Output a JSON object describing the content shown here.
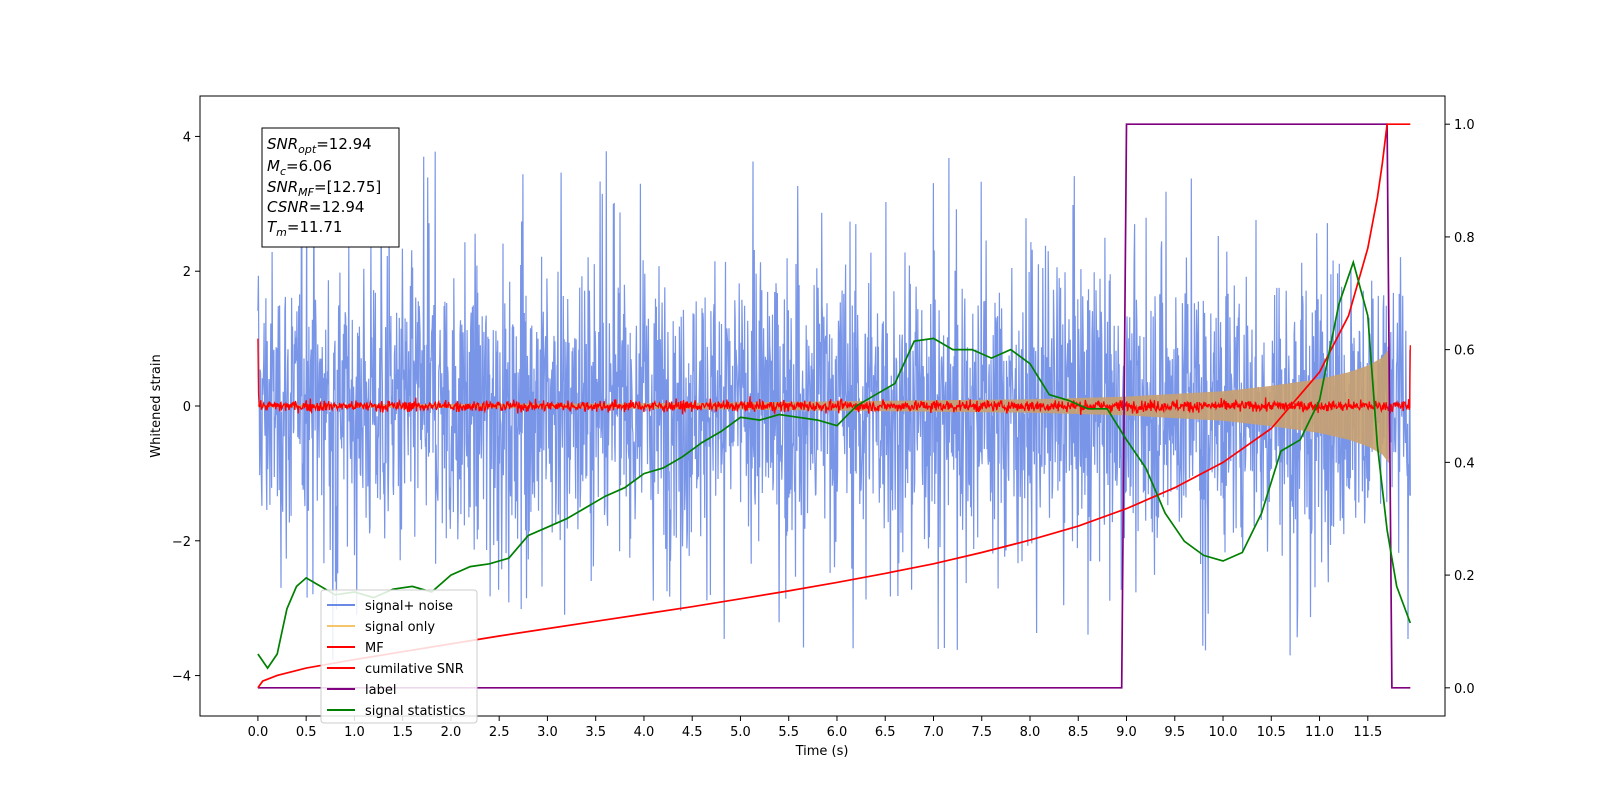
{
  "chart_data": {
    "type": "line",
    "xlabel": "Time (s)",
    "ylabel": "Whitened strain",
    "xlim": [
      -0.6,
      12.3
    ],
    "ylim": [
      -4.6,
      4.6
    ],
    "y2lim": [
      -0.05,
      1.05
    ],
    "xticks": [
      "0.0",
      "0.5",
      "1.0",
      "1.5",
      "2.0",
      "2.5",
      "3.0",
      "3.5",
      "4.0",
      "4.5",
      "5.0",
      "5.5",
      "6.0",
      "6.5",
      "7.0",
      "7.5",
      "8.0",
      "8.5",
      "9.0",
      "9.5",
      "10.0",
      "10.5",
      "11.0",
      "11.5"
    ],
    "yticks": [
      "4",
      "2",
      "0",
      "−2",
      "−4"
    ],
    "y2ticks": [
      "1.0",
      "0.8",
      "0.6",
      "0.4",
      "0.2",
      "0.0"
    ],
    "annotation": {
      "snr_opt": {
        "sym": "SNR",
        "sub": "opt",
        "val": "=12.94"
      },
      "mc": {
        "sym": "M",
        "sub": "c",
        "val": "=6.06"
      },
      "snr_mf": {
        "sym": "SNR",
        "sub": "MF",
        "val": "=[12.75]"
      },
      "csnr": {
        "sym": "CSNR",
        "sub": "",
        "val": "=12.94"
      },
      "tm": {
        "sym": "T",
        "sub": "m",
        "val": "=11.71"
      }
    },
    "legend": {
      "position": "lower-left",
      "entries": [
        {
          "label": "signal+ noise",
          "color": "#6a8ae6"
        },
        {
          "label": "signal only",
          "color": "#f5c56a"
        },
        {
          "label": "MF",
          "color": "#ff0000"
        },
        {
          "label": "cumilative SNR",
          "color": "#ff0000"
        },
        {
          "label": "label",
          "color": "#800080"
        },
        {
          "label": "signal statistics",
          "color": "#008000"
        }
      ]
    },
    "series": [
      {
        "name": "label",
        "axis": "right",
        "color": "#800080",
        "points": [
          [
            0.0,
            0.0
          ],
          [
            8.95,
            0.0
          ],
          [
            9.0,
            1.0
          ],
          [
            11.7,
            1.0
          ],
          [
            11.75,
            0.0
          ],
          [
            11.94,
            0.0
          ]
        ]
      },
      {
        "name": "cumilative SNR",
        "axis": "right",
        "color": "#ff0000",
        "points": [
          [
            0.0,
            0.0
          ],
          [
            0.05,
            0.012
          ],
          [
            0.2,
            0.022
          ],
          [
            0.5,
            0.035
          ],
          [
            1.0,
            0.05
          ],
          [
            1.5,
            0.064
          ],
          [
            2.0,
            0.078
          ],
          [
            2.5,
            0.092
          ],
          [
            3.0,
            0.105
          ],
          [
            3.5,
            0.118
          ],
          [
            4.0,
            0.131
          ],
          [
            4.5,
            0.144
          ],
          [
            5.0,
            0.158
          ],
          [
            5.5,
            0.172
          ],
          [
            6.0,
            0.187
          ],
          [
            6.5,
            0.203
          ],
          [
            7.0,
            0.22
          ],
          [
            7.5,
            0.24
          ],
          [
            8.0,
            0.262
          ],
          [
            8.5,
            0.287
          ],
          [
            9.0,
            0.318
          ],
          [
            9.5,
            0.355
          ],
          [
            10.0,
            0.4
          ],
          [
            10.5,
            0.46
          ],
          [
            11.0,
            0.56
          ],
          [
            11.3,
            0.66
          ],
          [
            11.5,
            0.78
          ],
          [
            11.6,
            0.87
          ],
          [
            11.65,
            0.93
          ],
          [
            11.7,
            1.0
          ],
          [
            11.94,
            1.0
          ]
        ]
      },
      {
        "name": "signal statistics",
        "axis": "right",
        "color": "#008000",
        "points": [
          [
            0.0,
            0.06
          ],
          [
            0.1,
            0.035
          ],
          [
            0.2,
            0.06
          ],
          [
            0.3,
            0.14
          ],
          [
            0.4,
            0.18
          ],
          [
            0.5,
            0.195
          ],
          [
            0.6,
            0.185
          ],
          [
            0.8,
            0.165
          ],
          [
            1.0,
            0.17
          ],
          [
            1.2,
            0.16
          ],
          [
            1.4,
            0.175
          ],
          [
            1.6,
            0.18
          ],
          [
            1.8,
            0.17
          ],
          [
            2.0,
            0.2
          ],
          [
            2.2,
            0.215
          ],
          [
            2.4,
            0.22
          ],
          [
            2.6,
            0.23
          ],
          [
            2.8,
            0.27
          ],
          [
            3.0,
            0.285
          ],
          [
            3.2,
            0.3
          ],
          [
            3.4,
            0.32
          ],
          [
            3.6,
            0.34
          ],
          [
            3.8,
            0.355
          ],
          [
            4.0,
            0.38
          ],
          [
            4.2,
            0.39
          ],
          [
            4.4,
            0.41
          ],
          [
            4.6,
            0.435
          ],
          [
            4.8,
            0.455
          ],
          [
            5.0,
            0.48
          ],
          [
            5.2,
            0.475
          ],
          [
            5.4,
            0.485
          ],
          [
            5.6,
            0.48
          ],
          [
            5.8,
            0.475
          ],
          [
            6.0,
            0.465
          ],
          [
            6.2,
            0.5
          ],
          [
            6.4,
            0.52
          ],
          [
            6.6,
            0.54
          ],
          [
            6.8,
            0.615
          ],
          [
            7.0,
            0.62
          ],
          [
            7.2,
            0.6
          ],
          [
            7.4,
            0.6
          ],
          [
            7.6,
            0.585
          ],
          [
            7.8,
            0.6
          ],
          [
            8.0,
            0.575
          ],
          [
            8.2,
            0.52
          ],
          [
            8.4,
            0.51
          ],
          [
            8.6,
            0.495
          ],
          [
            8.8,
            0.495
          ],
          [
            9.0,
            0.44
          ],
          [
            9.2,
            0.39
          ],
          [
            9.4,
            0.31
          ],
          [
            9.6,
            0.26
          ],
          [
            9.8,
            0.235
          ],
          [
            10.0,
            0.225
          ],
          [
            10.2,
            0.24
          ],
          [
            10.4,
            0.31
          ],
          [
            10.6,
            0.42
          ],
          [
            10.8,
            0.44
          ],
          [
            11.0,
            0.51
          ],
          [
            11.2,
            0.68
          ],
          [
            11.35,
            0.755
          ],
          [
            11.5,
            0.66
          ],
          [
            11.6,
            0.43
          ],
          [
            11.7,
            0.28
          ],
          [
            11.8,
            0.18
          ],
          [
            11.94,
            0.115
          ]
        ]
      }
    ],
    "signal_noise_envelope": {
      "series": "signal+ noise",
      "axis": "left",
      "color": "#6a8ae6",
      "t": [
        0.0,
        2.0,
        4.0,
        6.0,
        8.0,
        10.0,
        11.94
      ],
      "typical_amplitude": 2.0,
      "peak_max": 4.15,
      "peak_min": -4.05
    },
    "signal_only_envelope": {
      "series": "signal only",
      "axis": "left",
      "color": "#c8a070",
      "points": [
        [
          0.0,
          0.02
        ],
        [
          4.0,
          0.04
        ],
        [
          8.0,
          0.1
        ],
        [
          9.0,
          0.14
        ],
        [
          10.0,
          0.22
        ],
        [
          10.5,
          0.3
        ],
        [
          11.0,
          0.4
        ],
        [
          11.3,
          0.5
        ],
        [
          11.5,
          0.6
        ],
        [
          11.65,
          0.72
        ],
        [
          11.72,
          0.85
        ]
      ]
    },
    "mf_noise": {
      "series": "MF",
      "axis": "left",
      "color": "#ff0000",
      "typical_amplitude": 0.12,
      "start_value": 1.0,
      "end_value": 0.9
    }
  }
}
